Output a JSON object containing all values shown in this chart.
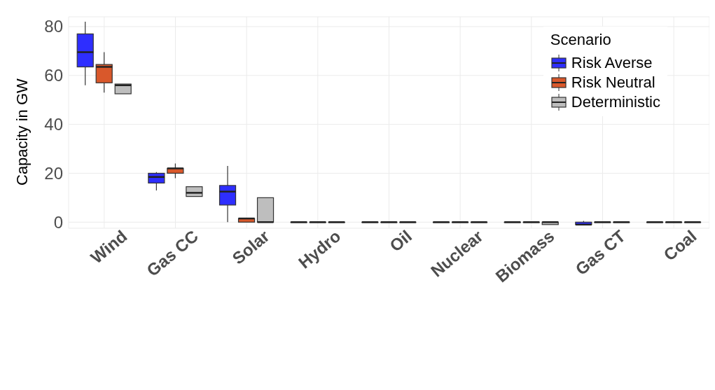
{
  "chart_data": {
    "type": "box",
    "ylabel": "Capacity in GW",
    "legend_title": "Scenario",
    "categories": [
      "Wind",
      "Gas CC",
      "Solar",
      "Hydro",
      "Oil",
      "Nuclear",
      "Biomass",
      "Gas CT",
      "Coal"
    ],
    "ylim": [
      -2.5,
      84
    ],
    "yticks": [
      0,
      20,
      40,
      60,
      80
    ],
    "grid": true,
    "legend": "top right",
    "series": [
      {
        "name": "Risk Averse",
        "color": "#2e2eff",
        "boxes": [
          {
            "low": 56,
            "q1": 63.5,
            "median": 69.5,
            "q3": 77,
            "high": 82
          },
          {
            "low": 13,
            "q1": 16,
            "median": 18.5,
            "q3": 20,
            "high": 20.5
          },
          {
            "low": 0,
            "q1": 7,
            "median": 12.5,
            "q3": 15,
            "high": 23
          },
          {
            "low": 0,
            "q1": 0,
            "median": 0,
            "q3": 0,
            "high": 0
          },
          {
            "low": 0,
            "q1": 0,
            "median": 0,
            "q3": 0,
            "high": 0
          },
          {
            "low": 0,
            "q1": 0,
            "median": 0,
            "q3": 0,
            "high": 0
          },
          {
            "low": 0,
            "q1": 0,
            "median": 0,
            "q3": 0,
            "high": 0
          },
          {
            "low": -1,
            "q1": -1,
            "median": -1,
            "q3": 0,
            "high": 0.5
          },
          {
            "low": 0,
            "q1": 0,
            "median": 0,
            "q3": 0,
            "high": 0
          }
        ]
      },
      {
        "name": "Risk Neutral",
        "color": "#d9582b",
        "boxes": [
          {
            "low": 53,
            "q1": 57,
            "median": 63.5,
            "q3": 64.5,
            "high": 69.5
          },
          {
            "low": 18,
            "q1": 20,
            "median": 22,
            "q3": 22,
            "high": 24
          },
          {
            "low": 0,
            "q1": 0,
            "median": 1.5,
            "q3": 1.5,
            "high": 1.5
          },
          {
            "low": 0,
            "q1": 0,
            "median": 0,
            "q3": 0,
            "high": 0
          },
          {
            "low": 0,
            "q1": 0,
            "median": 0,
            "q3": 0,
            "high": 0
          },
          {
            "low": 0,
            "q1": 0,
            "median": 0,
            "q3": 0,
            "high": 0
          },
          {
            "low": 0,
            "q1": 0,
            "median": 0,
            "q3": 0,
            "high": 0
          },
          {
            "low": 0,
            "q1": 0,
            "median": 0,
            "q3": 0,
            "high": 0
          },
          {
            "low": 0,
            "q1": 0,
            "median": 0,
            "q3": 0,
            "high": 0
          }
        ]
      },
      {
        "name": "Deterministic",
        "color": "#bebebe",
        "boxes": [
          {
            "low": 52.5,
            "q1": 52.5,
            "median": 56,
            "q3": 56.5,
            "high": 56.5
          },
          {
            "low": 10.5,
            "q1": 10.5,
            "median": 12,
            "q3": 14.5,
            "high": 14.5
          },
          {
            "low": 0,
            "q1": 0,
            "median": 0,
            "q3": 10,
            "high": 10
          },
          {
            "low": 0,
            "q1": 0,
            "median": 0,
            "q3": 0,
            "high": 0
          },
          {
            "low": 0,
            "q1": 0,
            "median": 0,
            "q3": 0,
            "high": 0
          },
          {
            "low": 0,
            "q1": 0,
            "median": 0,
            "q3": 0,
            "high": 0
          },
          {
            "low": -1,
            "q1": -1,
            "median": 0,
            "q3": 0,
            "high": 0
          },
          {
            "low": 0,
            "q1": 0,
            "median": 0,
            "q3": 0,
            "high": 0
          },
          {
            "low": 0,
            "q1": 0,
            "median": 0,
            "q3": 0,
            "high": 0
          }
        ]
      }
    ]
  }
}
